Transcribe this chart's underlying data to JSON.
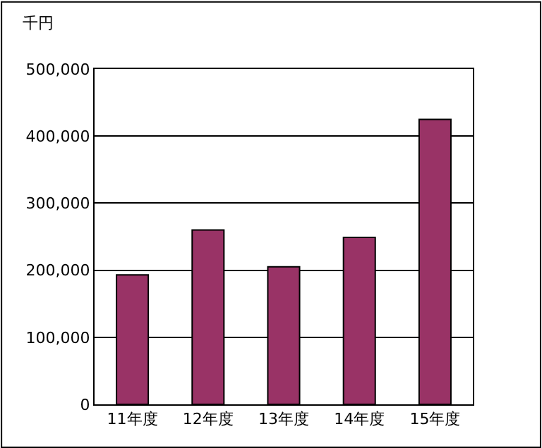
{
  "chart_data": {
    "type": "bar",
    "ylabel": "千円",
    "categories": [
      "11年度",
      "12年度",
      "13年度",
      "14年度",
      "15年度"
    ],
    "values": [
      193000,
      260000,
      205000,
      249000,
      425000
    ],
    "color": "#993366",
    "ylim": [
      0,
      500000
    ],
    "yticks": [
      {
        "value": 0,
        "label": "0"
      },
      {
        "value": 100000,
        "label": "100,000"
      },
      {
        "value": 200000,
        "label": "200,000"
      },
      {
        "value": 300000,
        "label": "300,000"
      },
      {
        "value": 400000,
        "label": "400,000"
      },
      {
        "value": 500000,
        "label": "500,000"
      }
    ],
    "grid": "y"
  }
}
